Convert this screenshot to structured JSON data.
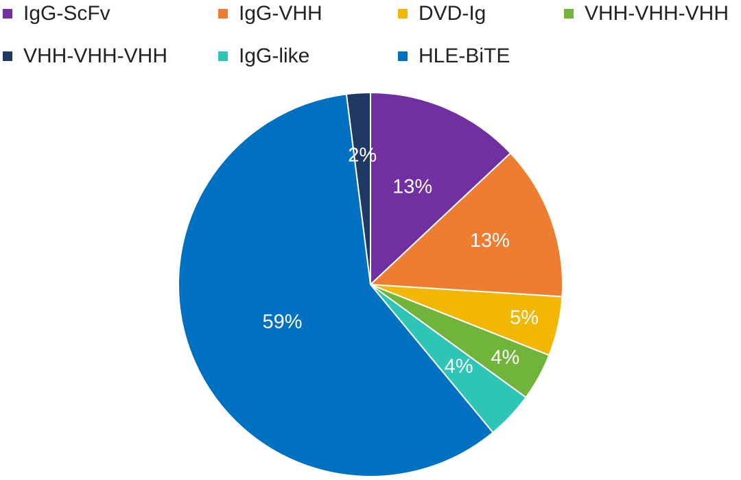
{
  "chart_data": {
    "type": "pie",
    "title": "",
    "categories": [
      "IgG-ScFv",
      "IgG-VHH",
      "DVD-Ig",
      "VHH-VHH-VHH",
      "VHH-VHH-VHH",
      "IgG-like",
      "HLE-BiTE"
    ],
    "values": [
      13,
      13,
      5,
      4,
      2,
      4,
      59
    ],
    "labels": [
      "13%",
      "13%",
      "5%",
      "4%",
      "2%",
      "4%",
      "59%"
    ],
    "slice_order": [
      0,
      1,
      2,
      3,
      5,
      6,
      4
    ],
    "colors": [
      "#7030a0",
      "#ed7d31",
      "#f2b705",
      "#70b43c",
      "#203864",
      "#2ec4b6",
      "#0070c0"
    ],
    "legend_position": "top",
    "start_angle_deg": 0,
    "direction": "clockwise"
  },
  "legend": {
    "items": [
      {
        "label": "IgG-ScFv",
        "color": "#7030a0"
      },
      {
        "label": "IgG-VHH",
        "color": "#ed7d31"
      },
      {
        "label": "DVD-Ig",
        "color": "#f2b705"
      },
      {
        "label": "VHH-VHH-VHH",
        "color": "#70b43c"
      },
      {
        "label": "VHH-VHH-VHH",
        "color": "#203864"
      },
      {
        "label": "IgG-like",
        "color": "#2ec4b6"
      },
      {
        "label": "HLE-BiTE",
        "color": "#0070c0"
      }
    ]
  }
}
